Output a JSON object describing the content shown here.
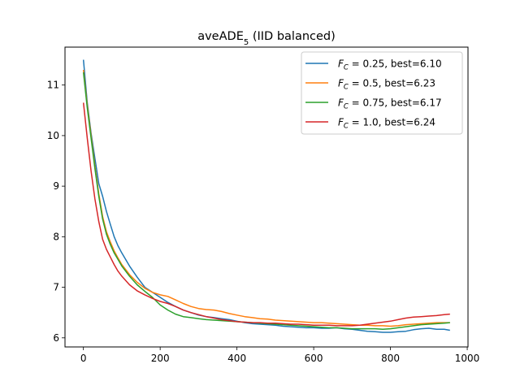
{
  "chart_data": {
    "type": "line",
    "title": "aveADE",
    "title_subscript": "5",
    "title_suffix": " (IID balanced)",
    "xlabel": "",
    "ylabel": "",
    "xlim": [
      -48,
      1002
    ],
    "ylim": [
      5.82,
      11.75
    ],
    "xticks": [
      0,
      200,
      400,
      600,
      800,
      1000
    ],
    "yticks": [
      6,
      7,
      8,
      9,
      10,
      11
    ],
    "grid": false,
    "legend_position": "top-right",
    "series": [
      {
        "name": "= 0.25, best=6.10",
        "label_var": "F",
        "label_sub": "C",
        "color": "#1f77b4",
        "x": [
          0,
          10,
          20,
          30,
          40,
          50,
          60,
          70,
          80,
          90,
          100,
          120,
          140,
          160,
          180,
          200,
          220,
          240,
          260,
          280,
          300,
          320,
          340,
          360,
          380,
          400,
          420,
          440,
          460,
          480,
          500,
          520,
          540,
          560,
          580,
          600,
          620,
          640,
          660,
          680,
          700,
          720,
          740,
          760,
          780,
          800,
          820,
          840,
          860,
          880,
          900,
          920,
          940,
          955
        ],
        "y": [
          11.5,
          10.65,
          10.05,
          9.55,
          9.05,
          8.8,
          8.5,
          8.25,
          8.0,
          7.82,
          7.68,
          7.42,
          7.2,
          7.0,
          6.9,
          6.8,
          6.7,
          6.62,
          6.55,
          6.5,
          6.45,
          6.42,
          6.4,
          6.38,
          6.36,
          6.33,
          6.3,
          6.28,
          6.27,
          6.26,
          6.25,
          6.23,
          6.22,
          6.21,
          6.2,
          6.2,
          6.19,
          6.19,
          6.2,
          6.18,
          6.17,
          6.15,
          6.13,
          6.12,
          6.11,
          6.11,
          6.12,
          6.13,
          6.16,
          6.18,
          6.19,
          6.17,
          6.17,
          6.15
        ]
      },
      {
        "name": "= 0.5, best=6.23",
        "label_var": "F",
        "label_sub": "C",
        "color": "#ff7f0e",
        "x": [
          0,
          10,
          20,
          30,
          40,
          50,
          60,
          70,
          80,
          90,
          100,
          120,
          140,
          160,
          180,
          200,
          220,
          240,
          260,
          280,
          300,
          320,
          340,
          360,
          380,
          400,
          420,
          440,
          460,
          480,
          500,
          520,
          540,
          560,
          580,
          600,
          620,
          640,
          660,
          680,
          700,
          720,
          740,
          760,
          780,
          800,
          820,
          840,
          860,
          880,
          900,
          920,
          940,
          955
        ],
        "y": [
          11.3,
          10.6,
          10.0,
          9.4,
          8.85,
          8.4,
          8.1,
          7.9,
          7.72,
          7.58,
          7.45,
          7.25,
          7.1,
          6.98,
          6.9,
          6.85,
          6.82,
          6.75,
          6.68,
          6.62,
          6.58,
          6.56,
          6.55,
          6.52,
          6.48,
          6.45,
          6.42,
          6.4,
          6.38,
          6.37,
          6.35,
          6.34,
          6.33,
          6.32,
          6.31,
          6.3,
          6.3,
          6.29,
          6.28,
          6.27,
          6.26,
          6.25,
          6.25,
          6.24,
          6.24,
          6.23,
          6.24,
          6.26,
          6.27,
          6.28,
          6.29,
          6.3,
          6.3,
          6.3
        ]
      },
      {
        "name": "= 0.75, best=6.17",
        "label_var": "F",
        "label_sub": "C",
        "color": "#2ca02c",
        "x": [
          0,
          10,
          20,
          30,
          40,
          50,
          60,
          70,
          80,
          90,
          100,
          120,
          140,
          160,
          180,
          200,
          220,
          240,
          260,
          280,
          300,
          320,
          340,
          360,
          380,
          400,
          420,
          440,
          460,
          480,
          500,
          520,
          540,
          560,
          580,
          600,
          620,
          640,
          660,
          680,
          700,
          720,
          740,
          760,
          780,
          800,
          820,
          840,
          860,
          880,
          900,
          920,
          940,
          955
        ],
        "y": [
          11.25,
          10.55,
          9.95,
          9.35,
          8.8,
          8.35,
          8.05,
          7.85,
          7.68,
          7.55,
          7.42,
          7.22,
          7.05,
          6.92,
          6.8,
          6.65,
          6.55,
          6.47,
          6.42,
          6.4,
          6.38,
          6.36,
          6.35,
          6.34,
          6.33,
          6.32,
          6.31,
          6.3,
          6.29,
          6.28,
          6.27,
          6.26,
          6.25,
          6.24,
          6.23,
          6.22,
          6.21,
          6.2,
          6.2,
          6.19,
          6.18,
          6.18,
          6.18,
          6.18,
          6.17,
          6.18,
          6.2,
          6.22,
          6.24,
          6.26,
          6.27,
          6.28,
          6.29,
          6.3
        ]
      },
      {
        "name": "= 1.0, best=6.24",
        "label_var": "F",
        "label_sub": "C",
        "color": "#d62728",
        "x": [
          0,
          10,
          20,
          30,
          40,
          50,
          60,
          70,
          80,
          90,
          100,
          120,
          140,
          160,
          180,
          200,
          220,
          240,
          260,
          280,
          300,
          320,
          340,
          360,
          380,
          400,
          420,
          440,
          460,
          480,
          500,
          520,
          540,
          560,
          580,
          600,
          620,
          640,
          660,
          680,
          700,
          720,
          740,
          760,
          780,
          800,
          820,
          840,
          860,
          880,
          900,
          920,
          940,
          955
        ],
        "y": [
          10.65,
          9.95,
          9.3,
          8.75,
          8.3,
          7.95,
          7.75,
          7.6,
          7.45,
          7.32,
          7.22,
          7.05,
          6.93,
          6.85,
          6.78,
          6.72,
          6.68,
          6.62,
          6.55,
          6.5,
          6.46,
          6.42,
          6.39,
          6.36,
          6.34,
          6.32,
          6.31,
          6.3,
          6.3,
          6.29,
          6.29,
          6.28,
          6.27,
          6.27,
          6.26,
          6.25,
          6.25,
          6.25,
          6.24,
          6.24,
          6.24,
          6.25,
          6.27,
          6.29,
          6.31,
          6.33,
          6.36,
          6.39,
          6.41,
          6.42,
          6.43,
          6.44,
          6.46,
          6.47
        ]
      }
    ]
  }
}
